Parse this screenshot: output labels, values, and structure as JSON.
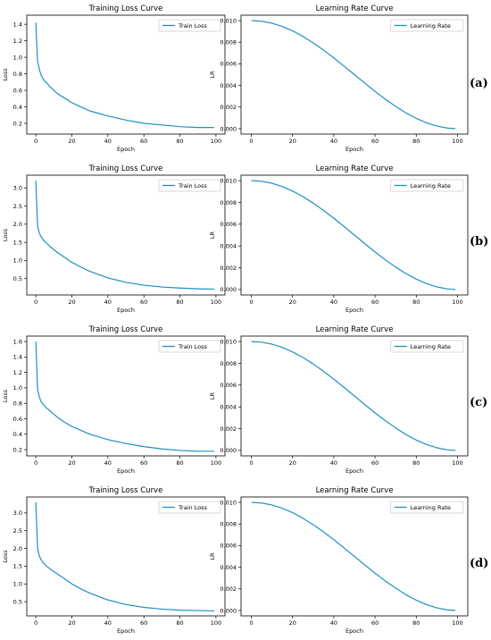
{
  "panel_labels": [
    "(a)",
    "(b)",
    "(c)",
    "(d)"
  ],
  "colors": {
    "line": "#1f8fc4",
    "axis": "#000000",
    "text": "#000000"
  },
  "chart_data": [
    {
      "type": "line",
      "title": "Training Loss Curve",
      "xlabel": "Epoch",
      "ylabel": "Loss",
      "xlim": [
        -5,
        105
      ],
      "ylim": [
        0.07,
        1.51
      ],
      "xticks": [
        0,
        20,
        40,
        60,
        80,
        100
      ],
      "yticks": [
        0.2,
        0.4,
        0.6,
        0.8,
        1.0,
        1.2,
        1.4
      ],
      "yticklabels": [
        "0.2",
        "0.4",
        "0.6",
        "0.8",
        "1.0",
        "1.2",
        "1.4"
      ],
      "legend": "top-right",
      "series": [
        {
          "name": "Train Loss",
          "x": [
            0,
            1,
            2,
            3,
            4,
            5,
            6,
            8,
            10,
            12,
            15,
            20,
            25,
            30,
            40,
            50,
            60,
            70,
            80,
            90,
            99
          ],
          "y": [
            1.42,
            0.95,
            0.85,
            0.78,
            0.74,
            0.71,
            0.69,
            0.64,
            0.6,
            0.56,
            0.52,
            0.45,
            0.4,
            0.35,
            0.29,
            0.24,
            0.2,
            0.18,
            0.16,
            0.15,
            0.15
          ]
        }
      ]
    },
    {
      "type": "line",
      "title": "Learning Rate Curve",
      "xlabel": "Epoch",
      "ylabel": "LR",
      "xlim": [
        -5,
        105
      ],
      "ylim": [
        -0.0005,
        0.0105
      ],
      "xticks": [
        0,
        20,
        40,
        60,
        80,
        100
      ],
      "yticks": [
        0,
        0.002,
        0.004,
        0.006,
        0.008,
        0.01
      ],
      "yticklabels": [
        "0.000",
        "0.002",
        "0.004",
        "0.006",
        "0.008",
        "0.010"
      ],
      "legend": "top-right",
      "series": [
        {
          "name": "Learning Rate",
          "x": [
            0,
            5,
            10,
            15,
            20,
            25,
            30,
            35,
            40,
            45,
            50,
            55,
            60,
            65,
            70,
            75,
            80,
            85,
            90,
            95,
            99
          ],
          "y": [
            0.01,
            0.00994,
            0.00976,
            0.00946,
            0.00905,
            0.00854,
            0.00794,
            0.00727,
            0.00655,
            0.00578,
            0.005,
            0.00422,
            0.00345,
            0.00273,
            0.00206,
            0.00146,
            0.00095,
            0.00054,
            0.00024,
            6e-05,
            0.0
          ]
        }
      ]
    },
    {
      "type": "line",
      "title": "Training Loss Curve",
      "xlabel": "Epoch",
      "ylabel": "Loss",
      "xlim": [
        -5,
        105
      ],
      "ylim": [
        0.05,
        3.35
      ],
      "xticks": [
        0,
        20,
        40,
        60,
        80,
        100
      ],
      "yticks": [
        0.5,
        1.0,
        1.5,
        2.0,
        2.5,
        3.0
      ],
      "yticklabels": [
        "0.5",
        "1.0",
        "1.5",
        "2.0",
        "2.5",
        "3.0"
      ],
      "legend": "top-right",
      "series": [
        {
          "name": "Train Loss",
          "x": [
            0,
            1,
            2,
            3,
            4,
            5,
            6,
            8,
            10,
            12,
            15,
            20,
            25,
            30,
            40,
            50,
            60,
            70,
            80,
            90,
            99
          ],
          "y": [
            3.2,
            1.95,
            1.75,
            1.65,
            1.58,
            1.52,
            1.48,
            1.38,
            1.3,
            1.22,
            1.12,
            0.95,
            0.82,
            0.7,
            0.52,
            0.4,
            0.32,
            0.27,
            0.24,
            0.22,
            0.21
          ]
        }
      ]
    },
    {
      "type": "line",
      "title": "Learning Rate Curve",
      "xlabel": "Epoch",
      "ylabel": "LR",
      "xlim": [
        -5,
        105
      ],
      "ylim": [
        -0.0005,
        0.0105
      ],
      "xticks": [
        0,
        20,
        40,
        60,
        80,
        100
      ],
      "yticks": [
        0,
        0.002,
        0.004,
        0.006,
        0.008,
        0.01
      ],
      "yticklabels": [
        "0.000",
        "0.002",
        "0.004",
        "0.006",
        "0.008",
        "0.010"
      ],
      "legend": "top-right",
      "series": [
        {
          "name": "Learning Rate",
          "x": [
            0,
            5,
            10,
            15,
            20,
            25,
            30,
            35,
            40,
            45,
            50,
            55,
            60,
            65,
            70,
            75,
            80,
            85,
            90,
            95,
            99
          ],
          "y": [
            0.01,
            0.00994,
            0.00976,
            0.00946,
            0.00905,
            0.00854,
            0.00794,
            0.00727,
            0.00655,
            0.00578,
            0.005,
            0.00422,
            0.00345,
            0.00273,
            0.00206,
            0.00146,
            0.00095,
            0.00054,
            0.00024,
            6e-05,
            0.0
          ]
        }
      ]
    },
    {
      "type": "line",
      "title": "Training Loss Curve",
      "xlabel": "Epoch",
      "ylabel": "Loss",
      "xlim": [
        -5,
        105
      ],
      "ylim": [
        0.12,
        1.67
      ],
      "xticks": [
        0,
        20,
        40,
        60,
        80,
        100
      ],
      "yticks": [
        0.2,
        0.4,
        0.6,
        0.8,
        1.0,
        1.2,
        1.4,
        1.6
      ],
      "yticklabels": [
        "0.2",
        "0.4",
        "0.6",
        "0.8",
        "1.0",
        "1.2",
        "1.4",
        "1.6"
      ],
      "legend": "top-right",
      "series": [
        {
          "name": "Train Loss",
          "x": [
            0,
            1,
            2,
            3,
            4,
            5,
            6,
            8,
            10,
            12,
            15,
            20,
            25,
            30,
            40,
            50,
            60,
            70,
            80,
            90,
            99
          ],
          "y": [
            1.6,
            0.98,
            0.88,
            0.82,
            0.79,
            0.76,
            0.74,
            0.7,
            0.66,
            0.62,
            0.57,
            0.5,
            0.45,
            0.4,
            0.33,
            0.28,
            0.24,
            0.21,
            0.19,
            0.18,
            0.18
          ]
        }
      ]
    },
    {
      "type": "line",
      "title": "Learning Rate Curve",
      "xlabel": "Epoch",
      "ylabel": "LR",
      "xlim": [
        -5,
        105
      ],
      "ylim": [
        -0.0005,
        0.0105
      ],
      "xticks": [
        0,
        20,
        40,
        60,
        80,
        100
      ],
      "yticks": [
        0,
        0.002,
        0.004,
        0.006,
        0.008,
        0.01
      ],
      "yticklabels": [
        "0.000",
        "0.002",
        "0.004",
        "0.006",
        "0.008",
        "0.010"
      ],
      "legend": "top-right",
      "series": [
        {
          "name": "Learning Rate",
          "x": [
            0,
            5,
            10,
            15,
            20,
            25,
            30,
            35,
            40,
            45,
            50,
            55,
            60,
            65,
            70,
            75,
            80,
            85,
            90,
            95,
            99
          ],
          "y": [
            0.01,
            0.00994,
            0.00976,
            0.00946,
            0.00905,
            0.00854,
            0.00794,
            0.00727,
            0.00655,
            0.00578,
            0.005,
            0.00422,
            0.00345,
            0.00273,
            0.00206,
            0.00146,
            0.00095,
            0.00054,
            0.00024,
            6e-05,
            0.0
          ]
        }
      ]
    },
    {
      "type": "line",
      "title": "Training Loss Curve",
      "xlabel": "Epoch",
      "ylabel": "Loss",
      "xlim": [
        -5,
        105
      ],
      "ylim": [
        0.1,
        3.45
      ],
      "xticks": [
        0,
        20,
        40,
        60,
        80,
        100
      ],
      "yticks": [
        0.5,
        1.0,
        1.5,
        2.0,
        2.5,
        3.0
      ],
      "yticklabels": [
        "0.5",
        "1.0",
        "1.5",
        "2.0",
        "2.5",
        "3.0"
      ],
      "legend": "top-right",
      "series": [
        {
          "name": "Train Loss",
          "x": [
            0,
            1,
            2,
            3,
            4,
            5,
            6,
            8,
            10,
            12,
            15,
            20,
            25,
            30,
            40,
            50,
            60,
            70,
            80,
            90,
            99
          ],
          "y": [
            3.3,
            2.0,
            1.78,
            1.68,
            1.6,
            1.55,
            1.5,
            1.42,
            1.35,
            1.28,
            1.18,
            1.0,
            0.86,
            0.74,
            0.55,
            0.42,
            0.34,
            0.29,
            0.26,
            0.25,
            0.24
          ]
        }
      ]
    },
    {
      "type": "line",
      "title": "Learning Rate Curve",
      "xlabel": "Epoch",
      "ylabel": "LR",
      "xlim": [
        -5,
        105
      ],
      "ylim": [
        -0.0005,
        0.0105
      ],
      "xticks": [
        0,
        20,
        40,
        60,
        80,
        100
      ],
      "yticks": [
        0,
        0.002,
        0.004,
        0.006,
        0.008,
        0.01
      ],
      "yticklabels": [
        "0.000",
        "0.002",
        "0.004",
        "0.006",
        "0.008",
        "0.010"
      ],
      "legend": "top-right",
      "series": [
        {
          "name": "Learning Rate",
          "x": [
            0,
            5,
            10,
            15,
            20,
            25,
            30,
            35,
            40,
            45,
            50,
            55,
            60,
            65,
            70,
            75,
            80,
            85,
            90,
            95,
            99
          ],
          "y": [
            0.01,
            0.00994,
            0.00976,
            0.00946,
            0.00905,
            0.00854,
            0.00794,
            0.00727,
            0.00655,
            0.00578,
            0.005,
            0.00422,
            0.00345,
            0.00273,
            0.00206,
            0.00146,
            0.00095,
            0.00054,
            0.00024,
            6e-05,
            0.0
          ]
        }
      ]
    }
  ]
}
